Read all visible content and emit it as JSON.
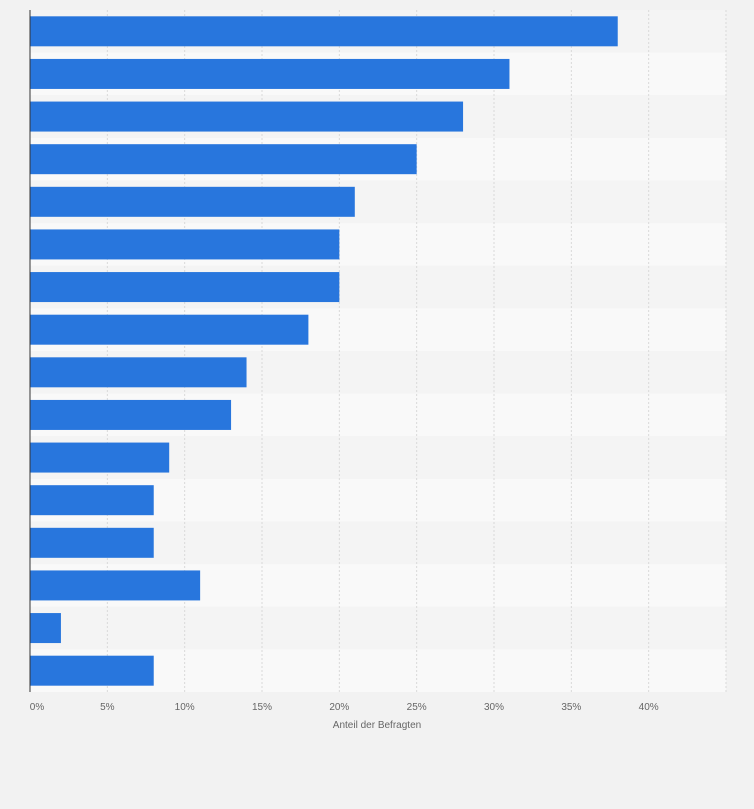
{
  "chart_data": {
    "type": "bar",
    "orientation": "horizontal",
    "title": "",
    "xlabel": "Anteil der Befragten",
    "ylabel": "",
    "categories": [
      "",
      "",
      "",
      "",
      "",
      "",
      "",
      "",
      "",
      "",
      "",
      "",
      "",
      "",
      "",
      ""
    ],
    "values": [
      38,
      31,
      28,
      25,
      21,
      20,
      20,
      18,
      14,
      13,
      9,
      8,
      8,
      11,
      2,
      8
    ],
    "xlim": [
      0,
      45
    ],
    "xticks": [
      0,
      5,
      10,
      15,
      20,
      25,
      30,
      35,
      40
    ],
    "xtick_labels": [
      "0%",
      "5%",
      "10%",
      "15%",
      "20%",
      "25%",
      "30%",
      "35%",
      "40%"
    ],
    "bar_color": "#2876dd",
    "grid": true
  }
}
